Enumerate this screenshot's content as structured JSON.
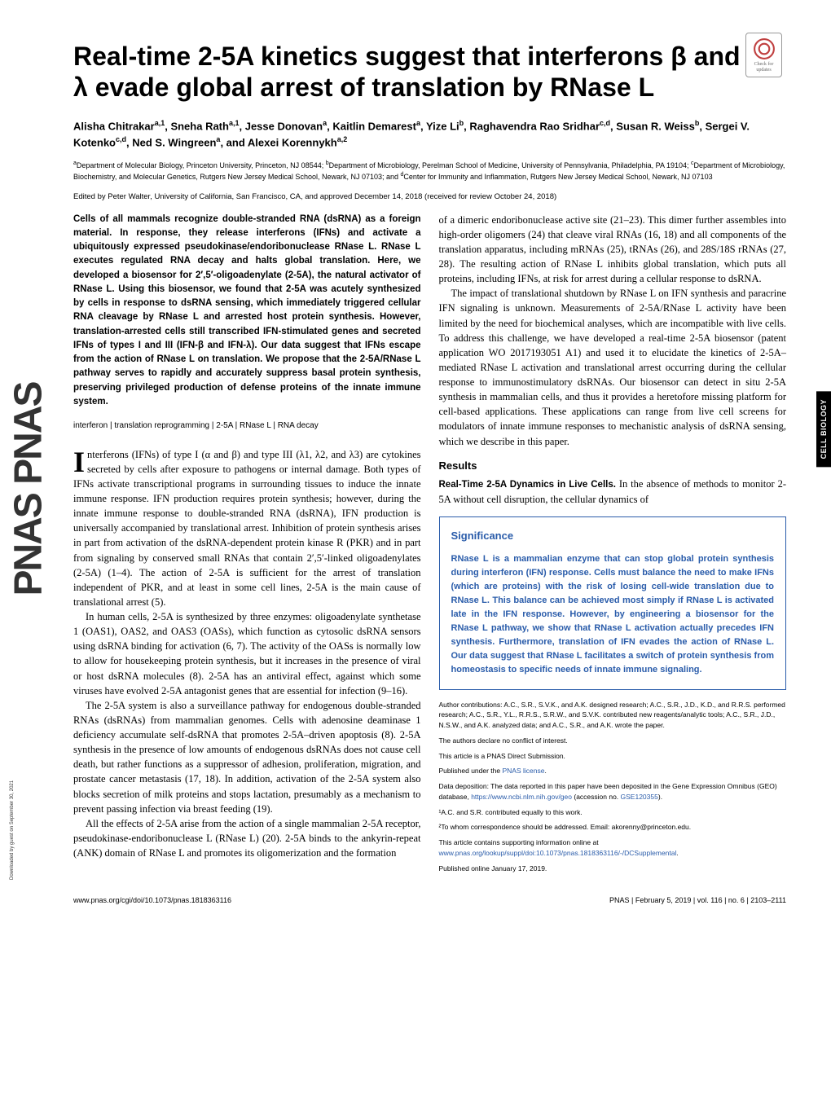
{
  "journal_sidebar": "PNAS PNAS",
  "category_tab": "CELL BIOLOGY",
  "crossmark_label": "Check for updates",
  "title": "Real-time 2-5A kinetics suggest that interferons β and λ evade global arrest of translation by RNase L",
  "authors_html": "Alisha Chitrakar<sup>a,1</sup>, Sneha Rath<sup>a,1</sup>, Jesse Donovan<sup>a</sup>, Kaitlin Demarest<sup>a</sup>, Yize Li<sup>b</sup>, Raghavendra Rao Sridhar<sup>c,d</sup>, Susan R. Weiss<sup>b</sup>, Sergei V. Kotenko<sup>c,d</sup>, Ned S. Wingreen<sup>a</sup>, and Alexei Korennykh<sup>a,2</sup>",
  "affiliations_html": "<sup>a</sup>Department of Molecular Biology, Princeton University, Princeton, NJ 08544; <sup>b</sup>Department of Microbiology, Perelman School of Medicine, University of Pennsylvania, Philadelphia, PA 19104; <sup>c</sup>Department of Microbiology, Biochemistry, and Molecular Genetics, Rutgers New Jersey Medical School, Newark, NJ 07103; and <sup>d</sup>Center for Immunity and Inflammation, Rutgers New Jersey Medical School, Newark, NJ 07103",
  "edited_by": "Edited by Peter Walter, University of California, San Francisco, CA, and approved December 14, 2018 (received for review October 24, 2018)",
  "abstract": "Cells of all mammals recognize double-stranded RNA (dsRNA) as a foreign material. In response, they release interferons (IFNs) and activate a ubiquitously expressed pseudokinase/endoribonuclease RNase L. RNase L executes regulated RNA decay and halts global translation. Here, we developed a biosensor for 2′,5′-oligoadenylate (2-5A), the natural activator of RNase L. Using this biosensor, we found that 2-5A was acutely synthesized by cells in response to dsRNA sensing, which immediately triggered cellular RNA cleavage by RNase L and arrested host protein synthesis. However, translation-arrested cells still transcribed IFN-stimulated genes and secreted IFNs of types I and III (IFN-β and IFN-λ). Our data suggest that IFNs escape from the action of RNase L on translation. We propose that the 2-5A/RNase L pathway serves to rapidly and accurately suppress basal protein synthesis, preserving privileged production of defense proteins of the innate immune system.",
  "keywords": "interferon | translation reprogramming | 2-5A | RNase L | RNA decay",
  "body": {
    "p1": "Interferons (IFNs) of type I (α and β) and type III (λ1, λ2, and λ3) are cytokines secreted by cells after exposure to pathogens or internal damage. Both types of IFNs activate transcriptional programs in surrounding tissues to induce the innate immune response. IFN production requires protein synthesis; however, during the innate immune response to double-stranded RNA (dsRNA), IFN production is universally accompanied by translational arrest. Inhibition of protein synthesis arises in part from activation of the dsRNA-dependent protein kinase R (PKR) and in part from signaling by conserved small RNAs that contain 2′,5′-linked oligoadenylates (2-5A) (1–4). The action of 2-5A is sufficient for the arrest of translation independent of PKR, and at least in some cell lines, 2-5A is the main cause of translational arrest (5).",
    "p2": "In human cells, 2-5A is synthesized by three enzymes: oligoadenylate synthetase 1 (OAS1), OAS2, and OAS3 (OASs), which function as cytosolic dsRNA sensors using dsRNA binding for activation (6, 7). The activity of the OASs is normally low to allow for housekeeping protein synthesis, but it increases in the presence of viral or host dsRNA molecules (8). 2-5A has an antiviral effect, against which some viruses have evolved 2-5A antagonist genes that are essential for infection (9–16).",
    "p3": "The 2-5A system is also a surveillance pathway for endogenous double-stranded RNAs (dsRNAs) from mammalian genomes. Cells with adenosine deaminase 1 deficiency accumulate self-dsRNA that promotes 2-5A–driven apoptosis (8). 2-5A synthesis in the presence of low amounts of endogenous dsRNAs does not cause cell death, but rather functions as a suppressor of adhesion, proliferation, migration, and prostate cancer metastasis (17, 18). In addition, activation of the 2-5A system also blocks secretion of milk proteins and stops lactation, presumably as a mechanism to prevent passing infection via breast feeding (19).",
    "p4": "All the effects of 2-5A arise from the action of a single mammalian 2-5A receptor, pseudokinase-endoribonuclease L (RNase L) (20). 2-5A binds to the ankyrin-repeat (ANK) domain of RNase L and promotes its oligomerization and the formation",
    "p5": "of a dimeric endoribonuclease active site (21–23). This dimer further assembles into high-order oligomers (24) that cleave viral RNAs (16, 18) and all components of the translation apparatus, including mRNAs (25), tRNAs (26), and 28S/18S rRNAs (27, 28). The resulting action of RNase L inhibits global translation, which puts all proteins, including IFNs, at risk for arrest during a cellular response to dsRNA.",
    "p6": "The impact of translational shutdown by RNase L on IFN synthesis and paracrine IFN signaling is unknown. Measurements of 2-5A/RNase L activity have been limited by the need for biochemical analyses, which are incompatible with live cells. To address this challenge, we have developed a real-time 2-5A biosensor (patent application WO 2017193051 A1) and used it to elucidate the kinetics of 2-5A–mediated RNase L activation and translational arrest occurring during the cellular response to immunostimulatory dsRNAs. Our biosensor can detect in situ 2-5A synthesis in mammalian cells, and thus it provides a heretofore missing platform for cell-based applications. These applications can range from live cell screens for modulators of innate immune responses to mechanistic analysis of dsRNA sensing, which we describe in this paper."
  },
  "results_head": "Results",
  "results_subhead": "Real-Time 2-5A Dynamics in Live Cells.",
  "results_p": " In the absence of methods to monitor 2-5A without cell disruption, the cellular dynamics of",
  "significance": {
    "title": "Significance",
    "body": "RNase L is a mammalian enzyme that can stop global protein synthesis during interferon (IFN) response. Cells must balance the need to make IFNs (which are proteins) with the risk of losing cell-wide translation due to RNase L. This balance can be achieved most simply if RNase L is activated late in the IFN response. However, by engineering a biosensor for the RNase L pathway, we show that RNase L activation actually precedes IFN synthesis. Furthermore, translation of IFN evades the action of RNase L. Our data suggest that RNase L facilitates a switch of protein synthesis from homeostasis to specific needs of innate immune signaling."
  },
  "footnotes": {
    "contributions": "Author contributions: A.C., S.R., S.V.K., and A.K. designed research; A.C., S.R., J.D., K.D., and R.R.S. performed research; A.C., S.R., Y.L., R.R.S., S.R.W., and S.V.K. contributed new reagents/analytic tools; A.C., S.R., J.D., N.S.W., and A.K. analyzed data; and A.C., S.R., and A.K. wrote the paper.",
    "conflict": "The authors declare no conflict of interest.",
    "submission": "This article is a PNAS Direct Submission.",
    "license": "Published under the ",
    "license_link": "PNAS license",
    "deposition": "Data deposition: The data reported in this paper have been deposited in the Gene Expression Omnibus (GEO) database, ",
    "deposition_link": "https://www.ncbi.nlm.nih.gov/geo",
    "deposition_acc": " (accession no. ",
    "deposition_acc_link": "GSE120355",
    "deposition_end": ").",
    "equal": "¹A.C. and S.R. contributed equally to this work.",
    "correspond": "²To whom correspondence should be addressed. Email: akorenny@princeton.edu.",
    "supporting": "This article contains supporting information online at ",
    "supporting_link": "www.pnas.org/lookup/suppl/doi:10.1073/pnas.1818363116/-/DCSupplemental",
    "supporting_end": ".",
    "published": "Published online January 17, 2019."
  },
  "footer": {
    "left": "www.pnas.org/cgi/doi/10.1073/pnas.1818363116",
    "right": "PNAS | February 5, 2019 | vol. 116 | no. 6 | 2103–2111"
  },
  "download_note": "Downloaded by guest on September 30, 2021"
}
